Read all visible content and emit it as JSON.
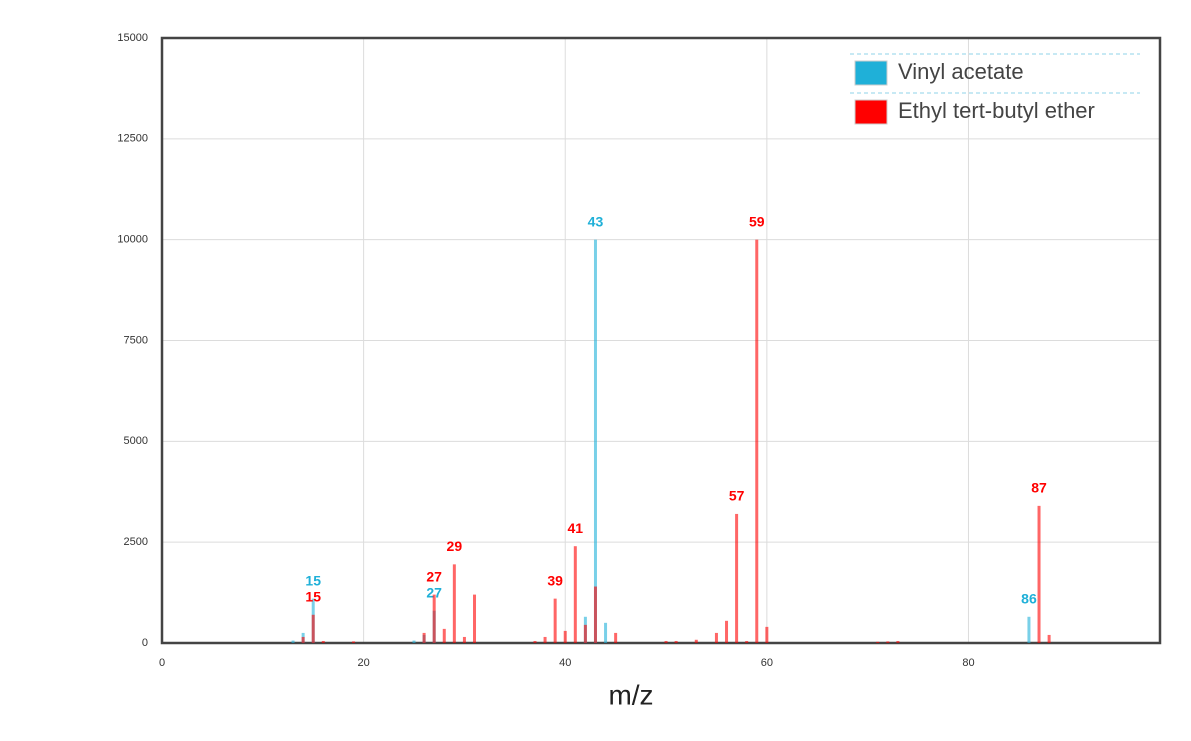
{
  "chart_data": {
    "type": "stick",
    "xlabel": "m/z",
    "xlim": [
      0,
      99
    ],
    "xticks": [
      0,
      20,
      40,
      60,
      80
    ],
    "ylim": [
      0,
      15000
    ],
    "yticks": [
      0,
      2500,
      5000,
      7500,
      10000,
      12500,
      15000
    ],
    "grid": true,
    "legend": "upper right",
    "series": [
      {
        "name": "Vinyl acetate",
        "color": "#1fb0d8",
        "x": [
          13,
          14,
          15,
          25,
          26,
          27,
          42,
          43,
          44,
          86
        ],
        "values": [
          60,
          250,
          1100,
          60,
          200,
          800,
          650,
          10000,
          500,
          650
        ],
        "labels": [
          null,
          null,
          "15",
          null,
          null,
          "27",
          null,
          "43",
          null,
          "86"
        ]
      },
      {
        "name": "Ethyl tert-butyl ether",
        "color": "#ff0000",
        "x": [
          14,
          15,
          16,
          19,
          26,
          27,
          28,
          29,
          30,
          31,
          37,
          38,
          39,
          40,
          41,
          42,
          43,
          45,
          50,
          51,
          53,
          55,
          56,
          57,
          58,
          59,
          60,
          71,
          72,
          73,
          87,
          88
        ],
        "values": [
          150,
          700,
          50,
          40,
          250,
          1200,
          350,
          1950,
          150,
          1200,
          50,
          150,
          1100,
          300,
          2400,
          450,
          1400,
          250,
          50,
          50,
          80,
          250,
          550,
          3200,
          50,
          10000,
          400,
          30,
          40,
          50,
          3400,
          200
        ],
        "labels": [
          null,
          "15",
          null,
          null,
          null,
          "27",
          null,
          "29",
          null,
          null,
          null,
          null,
          "39",
          null,
          "41",
          null,
          null,
          null,
          null,
          null,
          null,
          null,
          null,
          "57",
          null,
          "59",
          null,
          null,
          null,
          null,
          "87",
          null
        ]
      }
    ]
  }
}
